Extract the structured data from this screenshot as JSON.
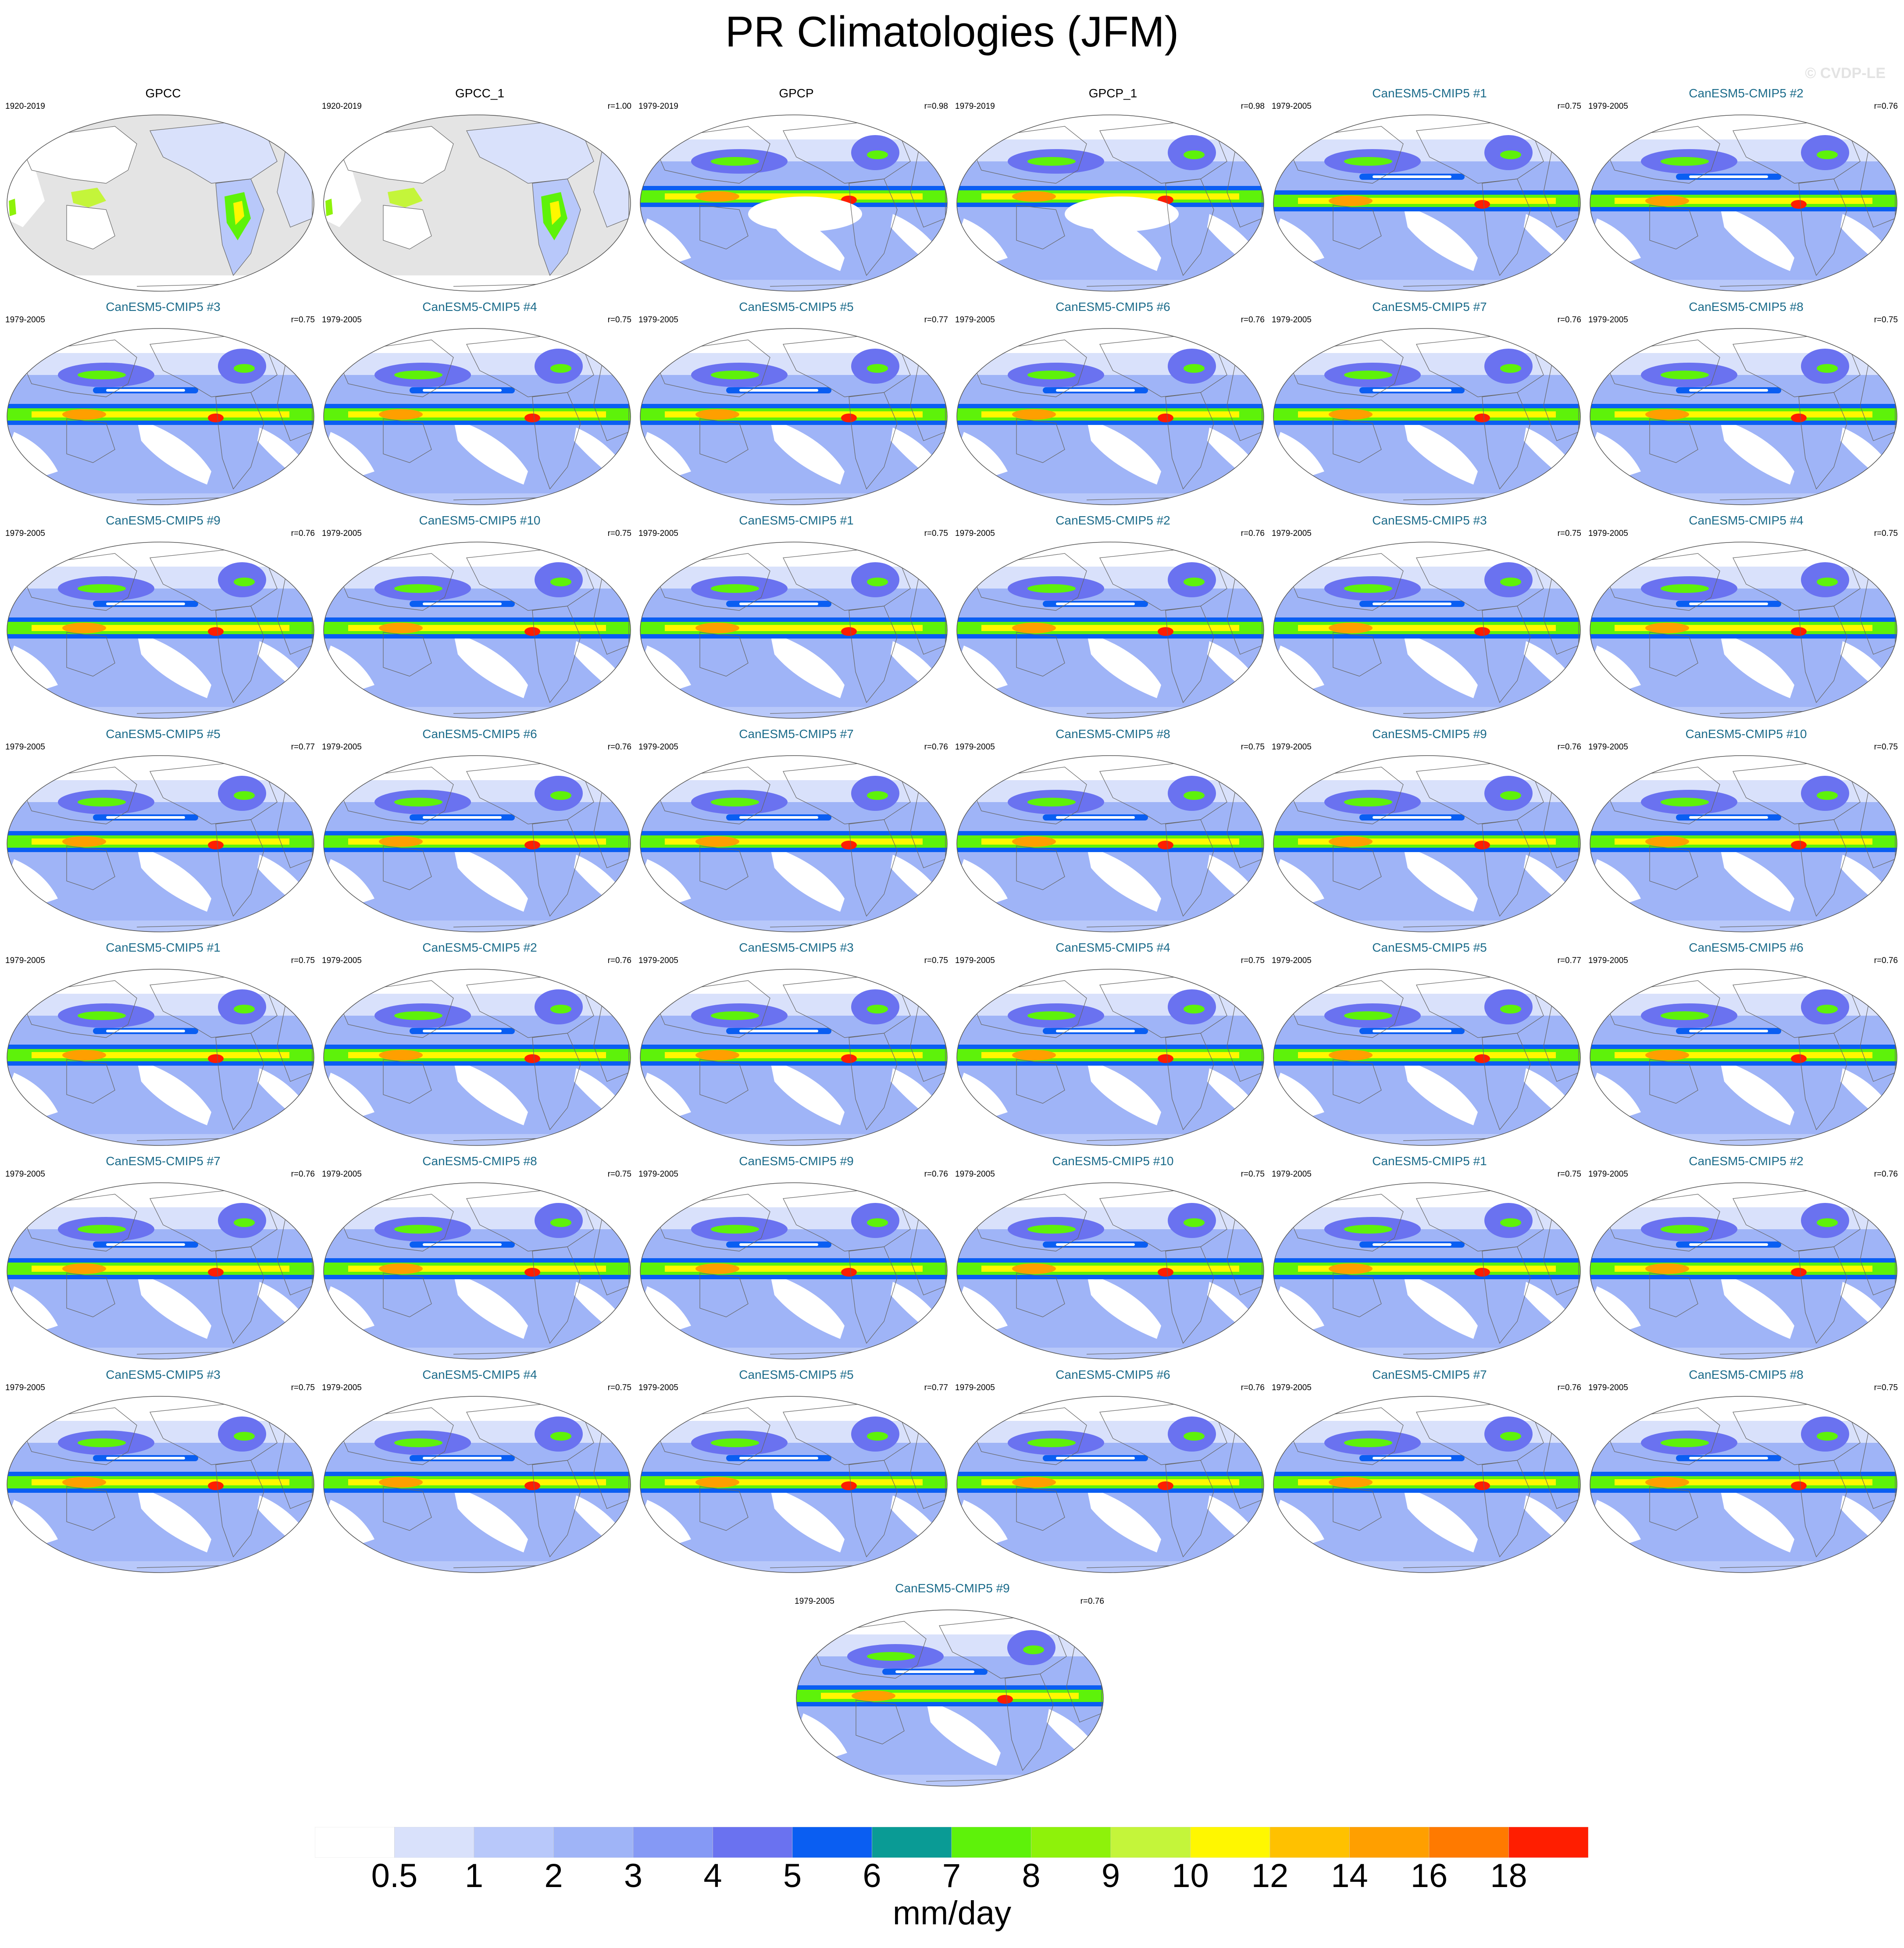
{
  "title": "PR Climatologies (JFM)",
  "watermark": "© CVDP-LE",
  "colors": {
    "ocean_base": "#7f9bf2",
    "land_missing": "#e4e4e4",
    "coast": "#666666",
    "model_title": "#1b6b8a"
  },
  "panels": [
    {
      "title": "GPCC",
      "years": "1920-2019",
      "corr": "",
      "kind": "obs_land"
    },
    {
      "title": "GPCC_1",
      "years": "1920-2019",
      "corr": "r=1.00",
      "kind": "obs_land"
    },
    {
      "title": "GPCP",
      "years": "1979-2019",
      "corr": "r=0.98",
      "kind": "obs"
    },
    {
      "title": "GPCP_1",
      "years": "1979-2019",
      "corr": "r=0.98",
      "kind": "obs"
    },
    {
      "title": "CanESM5-CMIP5 #1",
      "years": "1979-2005",
      "corr": "r=0.75",
      "kind": "model"
    },
    {
      "title": "CanESM5-CMIP5 #2",
      "years": "1979-2005",
      "corr": "r=0.76",
      "kind": "model"
    },
    {
      "title": "CanESM5-CMIP5 #3",
      "years": "1979-2005",
      "corr": "r=0.75",
      "kind": "model"
    },
    {
      "title": "CanESM5-CMIP5 #4",
      "years": "1979-2005",
      "corr": "r=0.75",
      "kind": "model"
    },
    {
      "title": "CanESM5-CMIP5 #5",
      "years": "1979-2005",
      "corr": "r=0.77",
      "kind": "model"
    },
    {
      "title": "CanESM5-CMIP5 #6",
      "years": "1979-2005",
      "corr": "r=0.76",
      "kind": "model"
    },
    {
      "title": "CanESM5-CMIP5 #7",
      "years": "1979-2005",
      "corr": "r=0.76",
      "kind": "model"
    },
    {
      "title": "CanESM5-CMIP5 #8",
      "years": "1979-2005",
      "corr": "r=0.75",
      "kind": "model"
    },
    {
      "title": "CanESM5-CMIP5 #9",
      "years": "1979-2005",
      "corr": "r=0.76",
      "kind": "model"
    },
    {
      "title": "CanESM5-CMIP5 #10",
      "years": "1979-2005",
      "corr": "r=0.75",
      "kind": "model"
    },
    {
      "title": "CanESM5-CMIP5 #1",
      "years": "1979-2005",
      "corr": "r=0.75",
      "kind": "model"
    },
    {
      "title": "CanESM5-CMIP5 #2",
      "years": "1979-2005",
      "corr": "r=0.76",
      "kind": "model"
    },
    {
      "title": "CanESM5-CMIP5 #3",
      "years": "1979-2005",
      "corr": "r=0.75",
      "kind": "model"
    },
    {
      "title": "CanESM5-CMIP5 #4",
      "years": "1979-2005",
      "corr": "r=0.75",
      "kind": "model"
    },
    {
      "title": "CanESM5-CMIP5 #5",
      "years": "1979-2005",
      "corr": "r=0.77",
      "kind": "model"
    },
    {
      "title": "CanESM5-CMIP5 #6",
      "years": "1979-2005",
      "corr": "r=0.76",
      "kind": "model"
    },
    {
      "title": "CanESM5-CMIP5 #7",
      "years": "1979-2005",
      "corr": "r=0.76",
      "kind": "model"
    },
    {
      "title": "CanESM5-CMIP5 #8",
      "years": "1979-2005",
      "corr": "r=0.75",
      "kind": "model"
    },
    {
      "title": "CanESM5-CMIP5 #9",
      "years": "1979-2005",
      "corr": "r=0.76",
      "kind": "model"
    },
    {
      "title": "CanESM5-CMIP5 #10",
      "years": "1979-2005",
      "corr": "r=0.75",
      "kind": "model"
    },
    {
      "title": "CanESM5-CMIP5 #1",
      "years": "1979-2005",
      "corr": "r=0.75",
      "kind": "model"
    },
    {
      "title": "CanESM5-CMIP5 #2",
      "years": "1979-2005",
      "corr": "r=0.76",
      "kind": "model"
    },
    {
      "title": "CanESM5-CMIP5 #3",
      "years": "1979-2005",
      "corr": "r=0.75",
      "kind": "model"
    },
    {
      "title": "CanESM5-CMIP5 #4",
      "years": "1979-2005",
      "corr": "r=0.75",
      "kind": "model"
    },
    {
      "title": "CanESM5-CMIP5 #5",
      "years": "1979-2005",
      "corr": "r=0.77",
      "kind": "model"
    },
    {
      "title": "CanESM5-CMIP5 #6",
      "years": "1979-2005",
      "corr": "r=0.76",
      "kind": "model"
    },
    {
      "title": "CanESM5-CMIP5 #7",
      "years": "1979-2005",
      "corr": "r=0.76",
      "kind": "model"
    },
    {
      "title": "CanESM5-CMIP5 #8",
      "years": "1979-2005",
      "corr": "r=0.75",
      "kind": "model"
    },
    {
      "title": "CanESM5-CMIP5 #9",
      "years": "1979-2005",
      "corr": "r=0.76",
      "kind": "model"
    },
    {
      "title": "CanESM5-CMIP5 #10",
      "years": "1979-2005",
      "corr": "r=0.75",
      "kind": "model"
    },
    {
      "title": "CanESM5-CMIP5 #1",
      "years": "1979-2005",
      "corr": "r=0.75",
      "kind": "model"
    },
    {
      "title": "CanESM5-CMIP5 #2",
      "years": "1979-2005",
      "corr": "r=0.76",
      "kind": "model"
    },
    {
      "title": "CanESM5-CMIP5 #3",
      "years": "1979-2005",
      "corr": "r=0.75",
      "kind": "model"
    },
    {
      "title": "CanESM5-CMIP5 #4",
      "years": "1979-2005",
      "corr": "r=0.75",
      "kind": "model"
    },
    {
      "title": "CanESM5-CMIP5 #5",
      "years": "1979-2005",
      "corr": "r=0.77",
      "kind": "model"
    },
    {
      "title": "CanESM5-CMIP5 #6",
      "years": "1979-2005",
      "corr": "r=0.76",
      "kind": "model"
    },
    {
      "title": "CanESM5-CMIP5 #7",
      "years": "1979-2005",
      "corr": "r=0.76",
      "kind": "model"
    },
    {
      "title": "CanESM5-CMIP5 #8",
      "years": "1979-2005",
      "corr": "r=0.75",
      "kind": "model"
    },
    {
      "title": "CanESM5-CMIP5 #9",
      "years": "1979-2005",
      "corr": "r=0.76",
      "kind": "model"
    }
  ],
  "colorbar": {
    "colors": [
      "#ffffff",
      "#d9e1fb",
      "#b8c8fa",
      "#9fb4f7",
      "#8599f5",
      "#6a72f0",
      "#0a5ef2",
      "#0a9b95",
      "#5ef20a",
      "#8ef20a",
      "#c4f53a",
      "#fff700",
      "#ffc100",
      "#ff9f00",
      "#ff7a00",
      "#ff1e00"
    ],
    "labels": [
      "0.5",
      "1",
      "2",
      "3",
      "4",
      "5",
      "6",
      "7",
      "8",
      "9",
      "10",
      "12",
      "14",
      "16",
      "18"
    ],
    "units": "mm/day"
  }
}
